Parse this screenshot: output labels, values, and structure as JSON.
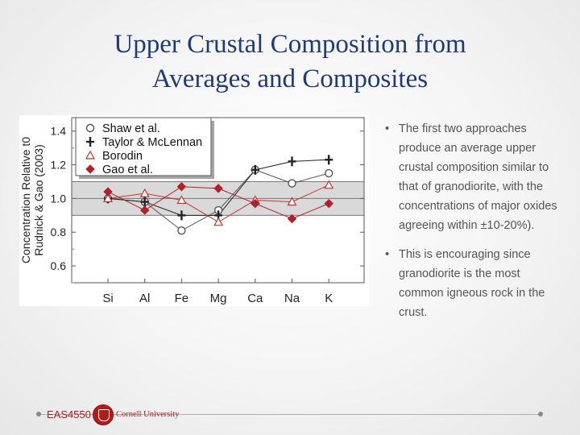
{
  "slide": {
    "title_line1": "Upper Crustal Composition from",
    "title_line2": "Averages and Composites"
  },
  "bullets": [
    {
      "symbol": "•",
      "text": "The first two approaches produce an average upper crustal composition similar to that of granodiorite, with the concentrations of major oxides agreeing within ±10-20%)."
    },
    {
      "symbol": "•",
      "text": "This is encouraging since granodiorite is the most common igneous rock in the crust."
    }
  ],
  "footer": {
    "course_code": "EAS4550",
    "university": "Cornell University"
  },
  "colors": {
    "title": "#1f3a7a",
    "accent_red": "#b31b1b",
    "band": "#d9d9d9",
    "gao_series": "#b2202a",
    "borodin_series": "#c0392b"
  },
  "chart_data": {
    "type": "line",
    "categories": [
      "Si",
      "Al",
      "Fe",
      "Mg",
      "Ca",
      "Na",
      "K"
    ],
    "ylabel_line1": "Concentration Relative t0",
    "ylabel_line2": "Rudnick & Gao (2003)",
    "yticks": [
      "1.4",
      "1.2",
      "1.0",
      "0.8",
      "0.6"
    ],
    "ylim": [
      0.5,
      1.48
    ],
    "reference_band": [
      0.9,
      1.1
    ],
    "reference_line": 1.0,
    "legend_position": "top-left",
    "series": [
      {
        "name": "Shaw et al.",
        "marker": "open-circle",
        "color": "#555555",
        "values": [
          1.0,
          0.98,
          0.81,
          0.93,
          1.17,
          1.09,
          1.15
        ]
      },
      {
        "name": "Taylor & McLennan",
        "marker": "cross",
        "color": "#222222",
        "values": [
          1.0,
          0.98,
          0.9,
          0.9,
          1.17,
          1.22,
          1.23
        ]
      },
      {
        "name": "Borodin",
        "marker": "open-triangle",
        "color": "#c0392b",
        "values": [
          1.0,
          1.03,
          0.99,
          0.86,
          0.99,
          0.98,
          1.08
        ]
      },
      {
        "name": "Gao et al.",
        "marker": "diamond",
        "color": "#b2202a",
        "values": [
          1.04,
          0.93,
          1.07,
          1.06,
          0.97,
          0.88,
          0.97
        ]
      }
    ]
  }
}
